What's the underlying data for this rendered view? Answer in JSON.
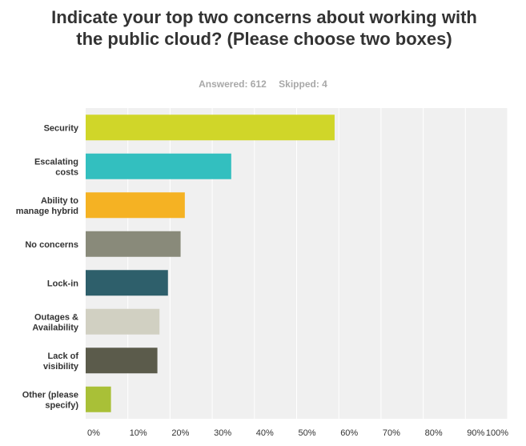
{
  "title": "Indicate your top two concerns about working with the public cloud? (Please choose two boxes)",
  "stats": {
    "answered": "Answered: 612",
    "skipped": "Skipped: 4"
  },
  "chart_data": {
    "type": "bar",
    "orientation": "horizontal",
    "categories": [
      [
        "Security"
      ],
      [
        "Escalating",
        "costs"
      ],
      [
        "Ability to",
        "manage hybrid"
      ],
      [
        "No concerns"
      ],
      [
        "Lock-in"
      ],
      [
        "Outages &",
        "Availability"
      ],
      [
        "Lack of",
        "visibility"
      ],
      [
        "Other (please",
        "specify)"
      ]
    ],
    "values": [
      59,
      34.5,
      23.5,
      22.5,
      19.5,
      17.5,
      17,
      6
    ],
    "colors": [
      "#d0d629",
      "#33bfbf",
      "#f5b223",
      "#898a7a",
      "#2e5f6b",
      "#d1d0c2",
      "#5b5b4b",
      "#a9c037"
    ],
    "xlim": [
      0,
      100
    ],
    "ticks": [
      "0%",
      "10%",
      "20%",
      "30%",
      "40%",
      "50%",
      "60%",
      "70%",
      "80%",
      "90%",
      "100%"
    ],
    "grid": true
  }
}
